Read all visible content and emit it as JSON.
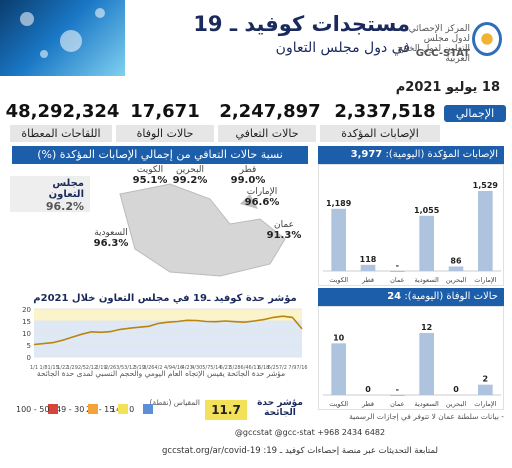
{
  "header": {
    "title": "مستجدات كوفيد ـ 19",
    "subtitle": "في دول مجلس التعاون",
    "org_ar": "المركز الإحصائي لدول مجلس التعاون لدول الخليج العربية",
    "org_en": "GCC-STAT"
  },
  "date": "18 يوليو 2021م",
  "totals": {
    "tag": "الإجمالي",
    "items": [
      {
        "label": "الإصابات المؤكدة",
        "value": "2,337,518"
      },
      {
        "label": "حالات التعافي",
        "value": "2,247,897"
      },
      {
        "label": "حالات الوفاة",
        "value": "17,671"
      },
      {
        "label": "اللقاحات المعطاة",
        "value": "48,292,324"
      }
    ]
  },
  "recovery": {
    "title": "نسبة حالات التعافي من إجمالي الإصابات المؤكدة (%)",
    "gcc_name": "مجلس التعاون",
    "gcc_value": "96.2%",
    "countries": [
      {
        "name": "الكويت",
        "value": "95.1%"
      },
      {
        "name": "البحرين",
        "value": "99.2%"
      },
      {
        "name": "قطر",
        "value": "99.0%"
      },
      {
        "name": "الإمارات",
        "value": "96.6%"
      },
      {
        "name": "عمان",
        "value": "91.3%"
      },
      {
        "name": "السعودية",
        "value": "96.3%"
      }
    ]
  },
  "confirmed_daily": {
    "title": "الإصابات المؤكدة (اليومية):",
    "total": "3,977"
  },
  "deaths_daily": {
    "title": "حالات الوفاة (اليومية):",
    "total": "24"
  },
  "severity": {
    "chart_title": "مؤشر حدة كوفيد ـ19 في مجلس التعاون خلال 2021م",
    "note": "مؤشر حدة الجائحة يقيس الإتجاه العام اليومي والحجم النسبي لمدى حدة الجائحة",
    "label": "مؤشر حدة الجائحة",
    "value": "11.7",
    "legend_title": "المقياس (نقطة)",
    "legend": [
      {
        "range": "14 - 0",
        "color": "#5b8fd6"
      },
      {
        "range": "29 - 15",
        "color": "#f4e15a"
      },
      {
        "range": "49 - 30",
        "color": "#f2a33a"
      },
      {
        "range": "100 - 50",
        "color": "#d9443a"
      }
    ]
  },
  "footer": {
    "socials": "@gccstat   @gcc-stat   +968 2434 6482",
    "line": "لمتابعة التحديثات عبر منصة إحصاءات كوفيد ـ 19:  gccstat.org/ar/covid-19",
    "note": "- بيانات سلطنة عمان لا تتوفر في إجازات الرسمية"
  },
  "chart_data": [
    {
      "type": "bar",
      "title": "الإصابات المؤكدة (اليومية)",
      "categories": [
        "الإمارات",
        "البحرين",
        "السعودية",
        "عمان",
        "قطر",
        "الكويت"
      ],
      "values": [
        1529,
        86,
        1055,
        null,
        118,
        1189
      ],
      "labels": [
        "1,529",
        "86",
        "1,055",
        "-",
        "118",
        "1,189"
      ]
    },
    {
      "type": "bar",
      "title": "حالات الوفاة (اليومية)",
      "categories": [
        "الإمارات",
        "البحرين",
        "السعودية",
        "عمان",
        "قطر",
        "الكويت"
      ],
      "values": [
        2,
        0,
        12,
        null,
        0,
        10
      ],
      "labels": [
        "2",
        "0",
        "12",
        "-",
        "0",
        "10"
      ]
    },
    {
      "type": "line",
      "title": "مؤشر حدة كوفيد ـ19 في مجلس التعاون خلال 2021م",
      "x": [
        "1/1",
        "1/8",
        "1/15",
        "1/22",
        "1/29",
        "2/5",
        "2/12",
        "2/19",
        "2/26",
        "3/5",
        "3/12",
        "3/19",
        "3/26",
        "4/2",
        "4/9",
        "4/16",
        "4/23",
        "4/30",
        "5/7",
        "5/14",
        "5/21",
        "5/28",
        "6/4",
        "6/11",
        "6/18",
        "6/25",
        "7/2",
        "7/9",
        "7/16"
      ],
      "y": [
        5.2,
        5.6,
        6.0,
        7.0,
        8.3,
        9.5,
        10.5,
        10.3,
        10.6,
        11.5,
        12.0,
        12.4,
        12.8,
        14.0,
        14.5,
        14.8,
        15.3,
        15.2,
        14.8,
        14.7,
        15.0,
        14.7,
        14.5,
        15.0,
        15.6,
        16.5,
        17.0,
        16.5,
        11.7
      ],
      "ylim": [
        0,
        20
      ],
      "yticks": [
        0,
        5,
        10,
        15,
        20
      ],
      "color": "#b8860b"
    }
  ]
}
